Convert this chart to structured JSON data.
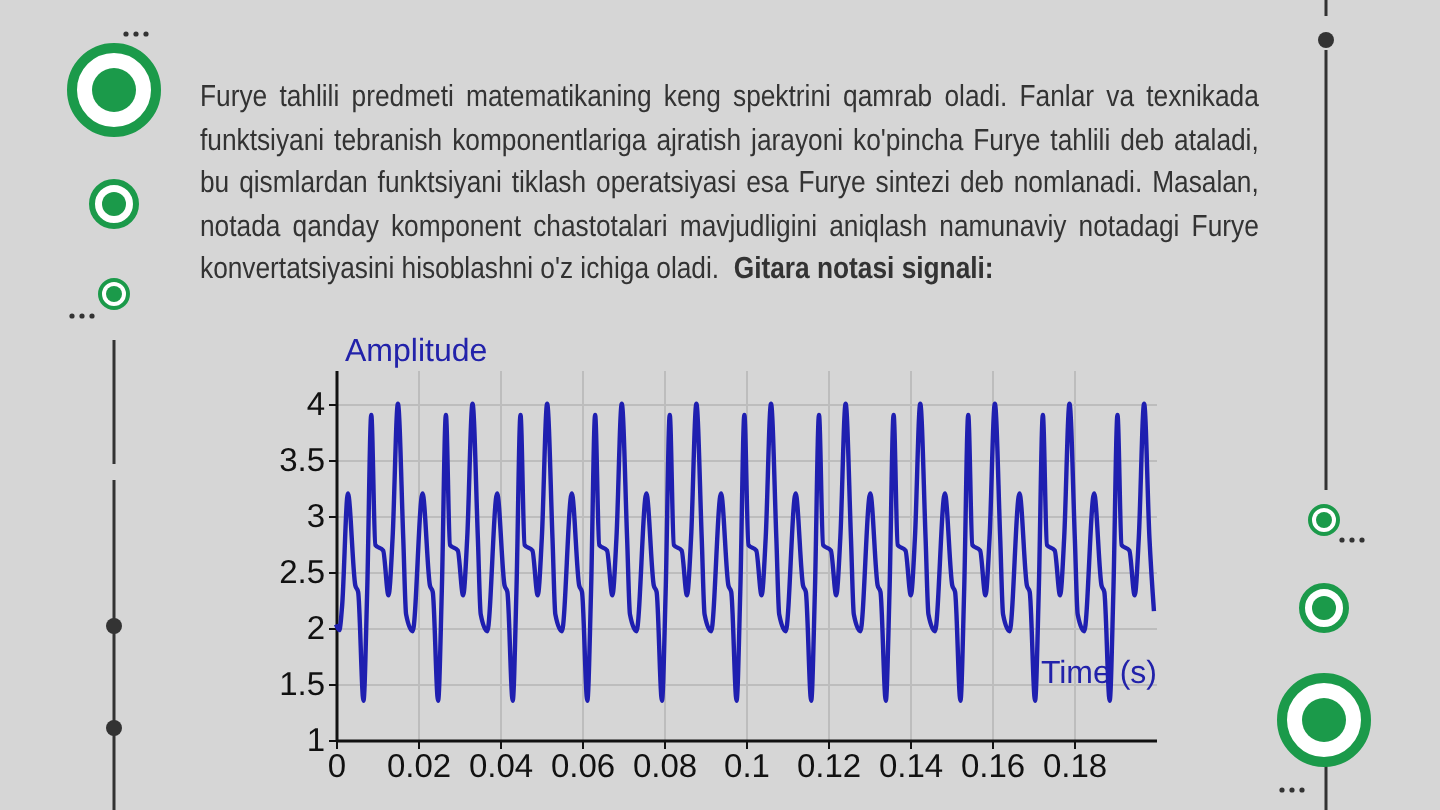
{
  "chart_data": {
    "type": "line",
    "title": "Gitara notasi signali:",
    "annotations": [
      "Furye tahlili predmeti matematikaning keng spektrini qamrab oladi. Fanlar va texnikada funktsiyani tebranish komponentlariga ajratish jarayoni ko'pincha Furye tahlili deb ataladi, bu qismlardan funktsiyani tiklash operatsiyasi esa Furye sintezi deb nomlanadi. Masalan, notada qanday komponent chastotalari mavjudligini aniqlash namunaviy notadagi Furye konvertatsiyasini hisoblashni o'z ichiga oladi."
    ],
    "xlabel": "Time (s)",
    "ylabel": "Amplitude",
    "color": "#1f1fb0",
    "grid": true,
    "xlim": [
      0,
      0.2
    ],
    "xticks": [
      0,
      0.02,
      0.04,
      0.06,
      0.08,
      0.1,
      0.12,
      0.14,
      0.16,
      0.18
    ],
    "ylim": [
      1,
      4.3
    ],
    "yticks": [
      1,
      1.5,
      2,
      2.5,
      3,
      3.5,
      4
    ],
    "x": [
      0,
      0.0008,
      0.0015,
      0.0029,
      0.0047,
      0.0054,
      0.0067,
      0.0076,
      0.0086,
      0.0096,
      0.0115,
      0.0128,
      0.0138,
      0.0151,
      0.0164,
      0.0171,
      0.0187,
      0.0211,
      0.0229,
      0.0236,
      0.0249,
      0.0258,
      0.0268,
      0.0278,
      0.0297,
      0.031,
      0.032,
      0.0333,
      0.0346,
      0.0353,
      0.0369,
      0.0393,
      0.0411,
      0.0418,
      0.0431,
      0.044,
      0.045,
      0.046,
      0.0479,
      0.0492,
      0.0502,
      0.0515,
      0.0528,
      0.0535,
      0.0551,
      0.0575,
      0.0593,
      0.06,
      0.0613,
      0.0622,
      0.0632,
      0.0642,
      0.0661,
      0.0674,
      0.0684,
      0.0697,
      0.071,
      0.0717,
      0.0733,
      0.0757,
      0.0775,
      0.0782,
      0.0795,
      0.0804,
      0.0814,
      0.0824,
      0.0843,
      0.0856,
      0.0866,
      0.0879,
      0.0892,
      0.0899,
      0.0915,
      0.0939,
      0.0957,
      0.0964,
      0.0977,
      0.0986,
      0.0996,
      0.1006,
      0.1025,
      0.1038,
      0.1048,
      0.1061,
      0.1074,
      0.1081,
      0.1097,
      0.1121,
      0.1139,
      0.1146,
      0.1159,
      0.1168,
      0.1178,
      0.1188,
      0.1207,
      0.122,
      0.123,
      0.1243,
      0.1256,
      0.1263,
      0.1279,
      0.1303,
      0.1321,
      0.1328,
      0.1341,
      0.135,
      0.136,
      0.137,
      0.1389,
      0.1402,
      0.1412,
      0.1425,
      0.1438,
      0.1445,
      0.1461,
      0.1485,
      0.1503,
      0.151,
      0.1523,
      0.1532,
      0.1542,
      0.1552,
      0.1571,
      0.1584,
      0.1594,
      0.1607,
      0.162,
      0.1627,
      0.1643,
      0.1667,
      0.1685,
      0.1692,
      0.1705,
      0.1714,
      0.1724,
      0.1734,
      0.1753,
      0.1766,
      0.1776,
      0.1789,
      0.1802,
      0.1809,
      0.1825,
      0.1849,
      0.1867,
      0.1874,
      0.1887,
      0.1896,
      0.1906,
      0.1916,
      0.1935,
      0.1948,
      0.1958,
      0.1971,
      0.1984,
      0.1995
    ],
    "values": [
      2.03,
      1.98,
      2.2,
      3.2,
      2.38,
      2.32,
      1.35,
      2.32,
      3.9,
      2.74,
      2.69,
      2.29,
      2.8,
      4.0,
      2.8,
      2.12,
      1.97,
      3.2,
      2.38,
      2.32,
      1.35,
      2.32,
      3.9,
      2.74,
      2.69,
      2.29,
      2.8,
      4.0,
      2.8,
      2.12,
      1.97,
      3.2,
      2.38,
      2.32,
      1.35,
      2.32,
      3.9,
      2.74,
      2.69,
      2.29,
      2.8,
      4.0,
      2.8,
      2.12,
      1.97,
      3.2,
      2.38,
      2.32,
      1.35,
      2.32,
      3.9,
      2.74,
      2.69,
      2.29,
      2.8,
      4.0,
      2.8,
      2.12,
      1.97,
      3.2,
      2.38,
      2.32,
      1.35,
      2.32,
      3.9,
      2.74,
      2.69,
      2.29,
      2.8,
      4.0,
      2.8,
      2.12,
      1.97,
      3.2,
      2.38,
      2.32,
      1.35,
      2.32,
      3.9,
      2.74,
      2.69,
      2.29,
      2.8,
      4.0,
      2.8,
      2.12,
      1.97,
      3.2,
      2.38,
      2.32,
      1.35,
      2.32,
      3.9,
      2.74,
      2.69,
      2.29,
      2.8,
      4.0,
      2.8,
      2.12,
      1.97,
      3.2,
      2.38,
      2.32,
      1.35,
      2.32,
      3.9,
      2.74,
      2.69,
      2.29,
      2.8,
      4.0,
      2.8,
      2.12,
      1.97,
      3.2,
      2.38,
      2.32,
      1.35,
      2.32,
      3.9,
      2.74,
      2.69,
      2.29,
      2.8,
      4.0,
      2.8,
      2.12,
      1.97,
      3.2,
      2.38,
      2.32,
      1.35,
      2.32,
      3.9,
      2.74,
      2.69,
      2.29,
      2.8,
      4.0,
      2.8,
      2.12,
      1.97,
      3.2,
      2.38,
      2.32,
      1.35,
      2.32,
      3.9,
      2.74,
      2.69,
      2.29,
      2.8,
      4.0,
      2.8,
      2.15
    ]
  }
}
